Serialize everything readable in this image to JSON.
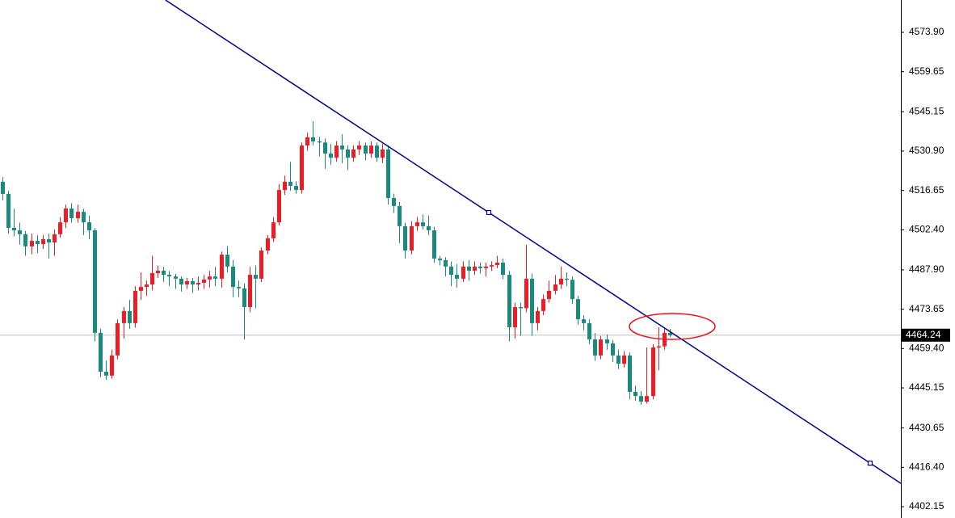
{
  "chart_data": {
    "type": "candlestick",
    "ylim": [
      4398.05,
      4585.6
    ],
    "yticks": [
      {
        "value": 4573.9,
        "label": "4573.90"
      },
      4559.65,
      4545.15,
      {
        "value": 4530.9,
        "label": "4530.90"
      },
      4516.65,
      {
        "value": 4502.4,
        "label": "4502.40"
      },
      {
        "value": 4487.9,
        "label": "4487.90"
      },
      4473.65,
      {
        "value": 4459.4,
        "label": "4459.40"
      },
      4445.15,
      4430.65,
      {
        "value": 4416.4,
        "label": "4416.40"
      },
      4402.15
    ],
    "up_color": "#ee1c25",
    "down_color": "#1a8a7e",
    "open": [
      4519.8,
      4515.4,
      4503.1,
      4502.2,
      4500.8,
      4496.4,
      4498.4,
      4497.2,
      4499.0,
      4497.8,
      4500.8,
      4505.1,
      4510.1,
      4506.6,
      4508.9,
      4505.1,
      4502.2,
      4465.1,
      4451.0,
      4449.6,
      4456.9,
      4468.6,
      4473.0,
      4468.6,
      4480.3,
      4481.7,
      4482.6,
      4486.7,
      4487.6,
      4486.1,
      4485.5,
      4484.7,
      4482.6,
      4483.8,
      4482.6,
      4483.2,
      4484.4,
      4485.5,
      4484.7,
      4493.4,
      4489.1,
      4481.7,
      4481.2,
      4474.4,
      4486.1,
      4484.7,
      4494.9,
      4499.3,
      4505.1,
      4516.8,
      4519.8,
      4518.3,
      4516.8,
      4532.9,
      4535.9,
      4534.4,
      4534.0,
      4530.0,
      4528.5,
      4532.9,
      4531.5,
      4528.5,
      4531.5,
      4532.9,
      4530.0,
      4532.9,
      4528.5,
      4531.5,
      4513.9,
      4511.0,
      4503.7,
      4494.9,
      4503.7,
      4505.1,
      4503.7,
      4502.2,
      4492.0,
      4491.4,
      4489.1,
      4486.1,
      4484.7,
      4489.1,
      4487.6,
      4489.1,
      4488.5,
      4489.1,
      4489.6,
      4490.5,
      4486.1,
      4467.1,
      4474.4,
      4474.0,
      4484.7,
      4468.6,
      4473.0,
      4477.3,
      4480.3,
      4482.6,
      4484.7,
      4484.3,
      4477.3,
      4470.0,
      4468.6,
      4462.7,
      4456.9,
      4462.7,
      4461.3,
      4456.9,
      4453.9,
      4456.9,
      4443.7,
      4442.2,
      4440.2,
      4442.2,
      4459.8,
      4460.2,
      4465.1
    ],
    "high": [
      4521.5,
      4516.5,
      4510.0,
      4505.0,
      4502.0,
      4501.0,
      4500.5,
      4500.5,
      4501.0,
      4502.5,
      4507.0,
      4511.5,
      4512.0,
      4511.5,
      4510.0,
      4507.5,
      4503.0,
      4466.5,
      4455.0,
      4459.0,
      4470.0,
      4474.5,
      4477.0,
      4482.0,
      4487.0,
      4484.0,
      4493.0,
      4489.5,
      4489.0,
      4487.5,
      4486.5,
      4485.5,
      4485.0,
      4485.0,
      4485.5,
      4486.0,
      4487.5,
      4489.0,
      4494.5,
      4496.5,
      4491.5,
      4484.0,
      4483.0,
      4489.0,
      4489.5,
      4496.0,
      4500.5,
      4507.0,
      4519.0,
      4522.0,
      4527.0,
      4520.0,
      4534.0,
      4537.5,
      4541.7,
      4536.0,
      4535.5,
      4533.5,
      4534.5,
      4537.0,
      4533.0,
      4533.0,
      4534.5,
      4534.0,
      4534.5,
      4534.0,
      4533.5,
      4533.0,
      4515.5,
      4512.5,
      4505.0,
      4505.5,
      4507.0,
      4508.0,
      4507.5,
      4503.5,
      4493.0,
      4492.5,
      4491.0,
      4490.0,
      4491.0,
      4491.5,
      4491.0,
      4490.5,
      4490.5,
      4491.0,
      4493.0,
      4492.0,
      4487.5,
      4476.0,
      4476.0,
      4497.0,
      4486.5,
      4474.5,
      4479.0,
      4484.0,
      4486.0,
      4489.1,
      4487.0,
      4485.5,
      4478.5,
      4471.5,
      4470.0,
      4465.0,
      4464.0,
      4464.5,
      4462.5,
      4459.0,
      4458.5,
      4458.0,
      4446.0,
      4444.0,
      4459.8,
      4461.0,
      4467.1,
      4467.0,
      4466.5
    ],
    "low": [
      4513.0,
      4501.0,
      4500.0,
      4497.0,
      4493.0,
      4493.5,
      4494.0,
      4495.5,
      4492.0,
      4493.0,
      4499.5,
      4503.0,
      4505.0,
      4505.0,
      4500.5,
      4499.0,
      4462.0,
      4449.0,
      4448.1,
      4448.5,
      4455.5,
      4463.0,
      4466.5,
      4467.0,
      4477.0,
      4478.5,
      4480.5,
      4485.0,
      4483.5,
      4482.0,
      4481.0,
      4480.0,
      4481.0,
      4479.5,
      4480.5,
      4481.0,
      4481.5,
      4482.0,
      4481.5,
      4487.0,
      4478.0,
      4478.0,
      4462.7,
      4472.5,
      4474.0,
      4483.5,
      4493.5,
      4498.0,
      4504.0,
      4515.0,
      4516.5,
      4515.5,
      4515.5,
      4531.0,
      4533.0,
      4529.0,
      4524.5,
      4526.0,
      4527.0,
      4526.5,
      4524.0,
      4527.0,
      4529.5,
      4527.5,
      4528.5,
      4527.0,
      4526.5,
      4511.5,
      4508.5,
      4497.5,
      4492.0,
      4493.5,
      4502.0,
      4502.5,
      4500.5,
      4490.5,
      4489.5,
      4485.5,
      4482.0,
      4481.5,
      4483.5,
      4484.0,
      4486.0,
      4486.5,
      4485.5,
      4487.5,
      4488.5,
      4484.5,
      4462.0,
      4463.0,
      4464.0,
      4472.5,
      4464.0,
      4466.0,
      4471.5,
      4476.0,
      4479.0,
      4481.0,
      4482.0,
      4475.5,
      4468.0,
      4466.0,
      4461.0,
      4455.0,
      4455.5,
      4459.0,
      4454.5,
      4452.0,
      4452.5,
      4441.0,
      4440.5,
      4439.0,
      4439.5,
      4441.0,
      4451.5,
      4459.0,
      4463.5
    ],
    "close": [
      4515.4,
      4503.1,
      4502.2,
      4500.8,
      4496.4,
      4498.4,
      4497.2,
      4499.0,
      4497.8,
      4500.8,
      4505.1,
      4510.1,
      4506.6,
      4508.9,
      4505.1,
      4502.2,
      4465.1,
      4451.0,
      4449.6,
      4456.9,
      4468.6,
      4473.0,
      4468.6,
      4480.3,
      4481.7,
      4482.6,
      4486.7,
      4487.6,
      4486.1,
      4485.5,
      4484.7,
      4482.6,
      4483.8,
      4482.6,
      4483.2,
      4484.4,
      4485.5,
      4484.7,
      4493.4,
      4489.1,
      4481.7,
      4481.2,
      4474.4,
      4486.1,
      4484.7,
      4494.9,
      4499.3,
      4505.1,
      4516.8,
      4519.8,
      4518.3,
      4516.8,
      4532.9,
      4535.9,
      4534.4,
      4534.0,
      4530.0,
      4528.5,
      4532.9,
      4531.5,
      4528.5,
      4531.5,
      4532.9,
      4530.0,
      4532.9,
      4528.5,
      4531.5,
      4513.9,
      4511.0,
      4503.7,
      4494.9,
      4503.7,
      4505.1,
      4503.7,
      4502.2,
      4492.0,
      4491.4,
      4489.1,
      4486.1,
      4484.7,
      4489.1,
      4487.6,
      4489.1,
      4488.5,
      4489.1,
      4489.6,
      4490.5,
      4486.1,
      4467.1,
      4474.4,
      4474.0,
      4484.7,
      4468.6,
      4473.0,
      4477.3,
      4480.3,
      4482.6,
      4484.7,
      4484.3,
      4477.3,
      4470.0,
      4468.6,
      4462.7,
      4456.9,
      4462.7,
      4461.3,
      4456.9,
      4453.9,
      4456.9,
      4443.7,
      4442.2,
      4440.2,
      4442.2,
      4459.8,
      4460.2,
      4465.1,
      4464.2
    ],
    "last_price": {
      "value": 4464.24,
      "label": "4464.24"
    },
    "trendline": {
      "color": "#00008b",
      "x": [
        84.55,
        150.84
      ],
      "values": [
        4508.65,
        4417.9
      ]
    }
  }
}
